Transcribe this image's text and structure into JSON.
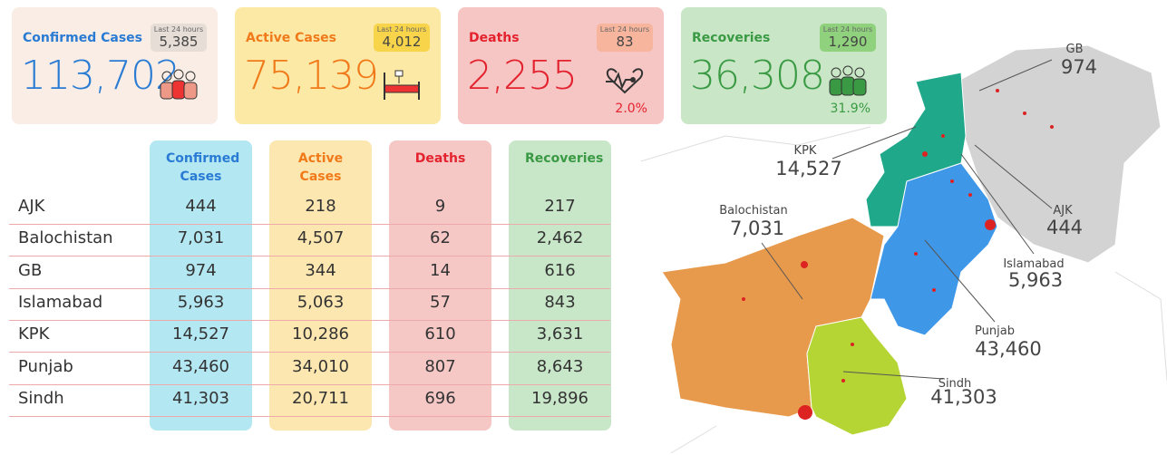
{
  "cards": [
    {
      "title": "Confirmed Cases",
      "value": "113,702",
      "last_label": "Last 24 hours",
      "last_value": "5,385"
    },
    {
      "title": "Active Cases",
      "value": "75,139",
      "last_label": "Last 24 hours",
      "last_value": "4,012"
    },
    {
      "title": "Deaths",
      "value": "2,255",
      "last_label": "Last 24 hours",
      "last_value": "83",
      "percent": "2.0%"
    },
    {
      "title": "Recoveries",
      "value": "36,308",
      "last_label": "Last 24 hours",
      "last_value": "1,290",
      "percent": "31.9%"
    }
  ],
  "table": {
    "columns": [
      "Confirmed Cases",
      "Active Cases",
      "Deaths",
      "Recoveries"
    ],
    "rows": [
      [
        "AJK",
        "444",
        "218",
        "9",
        "217"
      ],
      [
        "Balochistan",
        "7,031",
        "4,507",
        "62",
        "2,462"
      ],
      [
        "GB",
        "974",
        "344",
        "14",
        "616"
      ],
      [
        "Islamabad",
        "5,963",
        "5,063",
        "57",
        "843"
      ],
      [
        "KPK",
        "14,527",
        "10,286",
        "610",
        "3,631"
      ],
      [
        "Punjab",
        "43,460",
        "34,010",
        "807",
        "8,643"
      ],
      [
        "Sindh",
        "41,303",
        "20,711",
        "696",
        "19,896"
      ]
    ]
  },
  "map": {
    "labels": [
      {
        "name": "GB",
        "value": "974"
      },
      {
        "name": "KPK",
        "value": "14,527"
      },
      {
        "name": "Balochistan",
        "value": "7,031"
      },
      {
        "name": "AJK",
        "value": "444"
      },
      {
        "name": "Islamabad",
        "value": "5,963"
      },
      {
        "name": "Punjab",
        "value": "43,460"
      },
      {
        "name": "Sindh",
        "value": "41,303"
      }
    ]
  }
}
